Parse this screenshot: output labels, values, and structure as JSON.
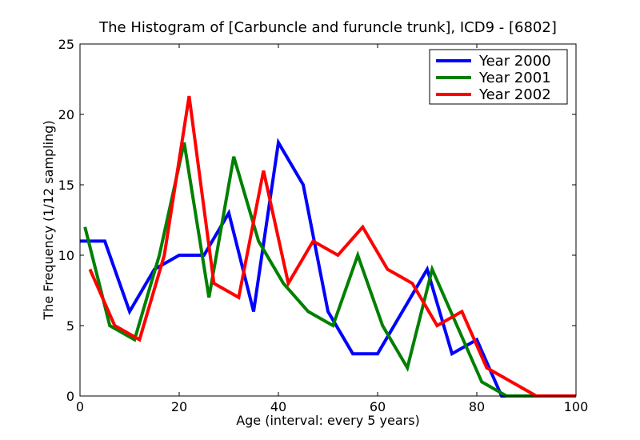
{
  "chart_data": {
    "type": "line",
    "title": "The Histogram of [Carbuncle and furuncle trunk], ICD9 - [6802]",
    "xlabel": "Age (interval: every 5 years)",
    "ylabel": "The Frequency (1/12 sampling)",
    "xlim": [
      0,
      100
    ],
    "ylim": [
      0,
      25
    ],
    "xticks": [
      "0",
      "20",
      "40",
      "60",
      "80",
      "100"
    ],
    "yticks": [
      "0",
      "5",
      "10",
      "15",
      "20",
      "25"
    ],
    "grid": false,
    "legend_position": "top-right",
    "series": [
      {
        "name": "Year 2000",
        "color": "#0000ff",
        "points": [
          [
            0,
            11
          ],
          [
            5,
            11
          ],
          [
            10,
            6
          ],
          [
            15,
            9
          ],
          [
            20,
            10
          ],
          [
            25,
            10
          ],
          [
            30,
            13
          ],
          [
            35,
            6
          ],
          [
            40,
            18
          ],
          [
            45,
            15
          ],
          [
            50,
            6
          ],
          [
            55,
            3
          ],
          [
            60,
            3
          ],
          [
            65,
            6
          ],
          [
            70,
            9
          ],
          [
            75,
            3
          ],
          [
            80,
            4
          ],
          [
            85,
            0
          ],
          [
            90,
            0
          ],
          [
            95,
            0
          ],
          [
            100,
            0
          ]
        ]
      },
      {
        "name": "Year 2001",
        "color": "#008000",
        "points": [
          [
            1,
            12
          ],
          [
            6,
            5
          ],
          [
            11,
            4
          ],
          [
            16,
            10
          ],
          [
            21,
            18
          ],
          [
            26,
            7
          ],
          [
            31,
            17
          ],
          [
            36,
            11
          ],
          [
            41,
            8
          ],
          [
            46,
            6
          ],
          [
            51,
            5
          ],
          [
            56,
            10
          ],
          [
            61,
            5
          ],
          [
            66,
            2
          ],
          [
            71,
            9
          ],
          [
            76,
            5
          ],
          [
            81,
            1
          ],
          [
            86,
            0
          ],
          [
            91,
            0
          ],
          [
            96,
            0
          ],
          [
            100,
            0
          ]
        ]
      },
      {
        "name": "Year 2002",
        "color": "#ff0000",
        "points": [
          [
            2,
            9
          ],
          [
            7,
            5
          ],
          [
            12,
            4
          ],
          [
            17,
            10
          ],
          [
            22,
            21.3
          ],
          [
            27,
            8
          ],
          [
            32,
            7
          ],
          [
            37,
            16
          ],
          [
            42,
            8
          ],
          [
            47,
            11
          ],
          [
            52,
            10
          ],
          [
            57,
            12
          ],
          [
            62,
            9
          ],
          [
            67,
            8
          ],
          [
            72,
            5
          ],
          [
            77,
            6
          ],
          [
            82,
            2
          ],
          [
            87,
            1
          ],
          [
            92,
            0
          ],
          [
            97,
            0
          ],
          [
            100,
            0
          ]
        ]
      }
    ]
  }
}
